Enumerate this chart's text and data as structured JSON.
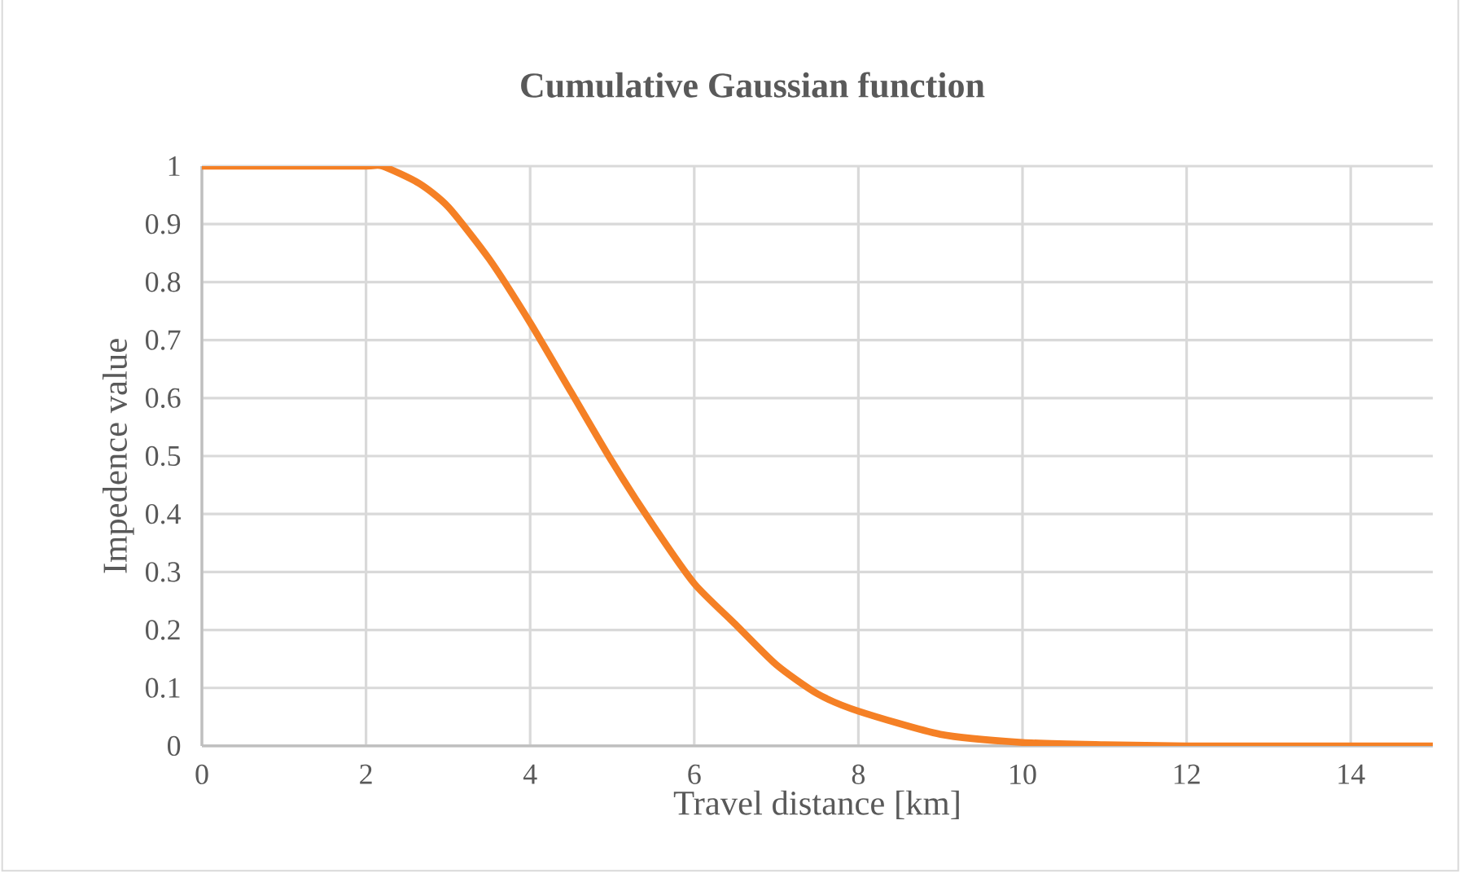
{
  "chart_data": {
    "type": "line",
    "title": "Cumulative Gaussian function",
    "xlabel": "Travel distance [km]",
    "ylabel": "Impedence value",
    "x": [
      0,
      1,
      2,
      2.2,
      2.65,
      3,
      3.5,
      4,
      4.5,
      5,
      5.5,
      6,
      6.5,
      7,
      7.5,
      8,
      9,
      10,
      11,
      12,
      13,
      14,
      15
    ],
    "series": [
      {
        "color": "#f58025",
        "values": [
          1,
          1,
          1,
          1,
          0.97,
          0.93,
          0.84,
          0.73,
          0.61,
          0.49,
          0.38,
          0.28,
          0.21,
          0.14,
          0.09,
          0.06,
          0.02,
          0.006,
          0.002,
          0,
          0,
          0,
          0
        ]
      }
    ],
    "xlim": [
      0,
      15
    ],
    "xticks": [
      0,
      2,
      4,
      6,
      8,
      10,
      12,
      14
    ],
    "ylim": [
      0,
      1
    ],
    "yticks": [
      0,
      0.1,
      0.2,
      0.3,
      0.4,
      0.5,
      0.6,
      0.7,
      0.8,
      0.9,
      1
    ],
    "grid": true,
    "marker": "none",
    "line_style": "solid"
  }
}
